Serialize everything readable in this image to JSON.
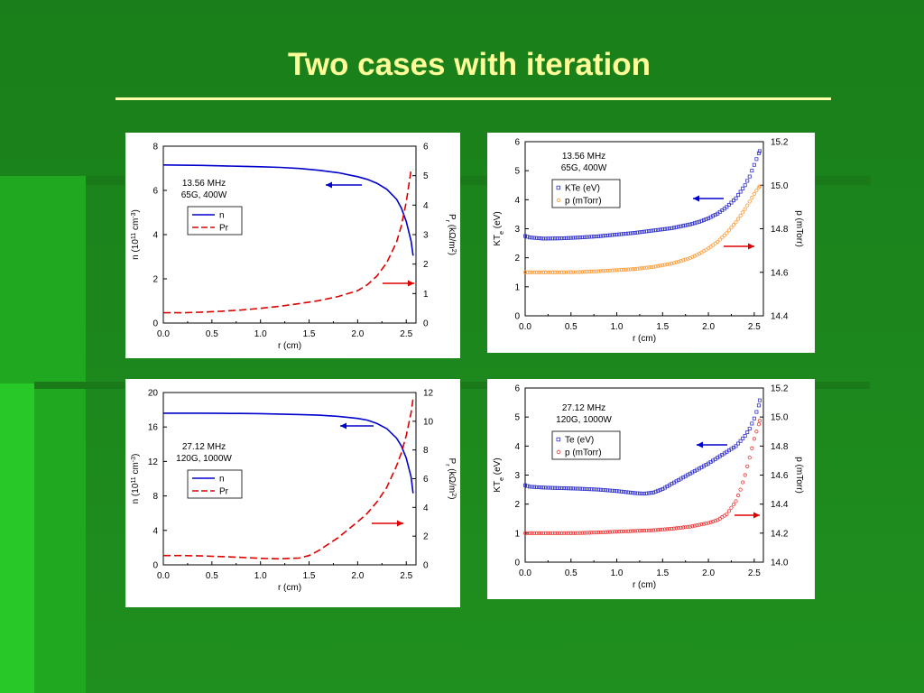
{
  "slide": {
    "title": "Two cases with iteration"
  },
  "chart_data": [
    {
      "type": "line",
      "annotation": [
        "13.56 MHz",
        "65G, 400W"
      ],
      "xlabel": "r (cm)",
      "ylabel": "n (10^11 cm^-3)",
      "y2label": "Pr (kΩ/m²)",
      "xlim": [
        0,
        2.6
      ],
      "ylim": [
        0,
        8
      ],
      "y2lim": [
        0,
        6
      ],
      "xticks": [
        "0.0",
        "0.5",
        "1.0",
        "1.5",
        "2.0",
        "2.5"
      ],
      "yticks": [
        "0",
        "2",
        "4",
        "6",
        "8"
      ],
      "y2ticks": [
        "0",
        "1",
        "2",
        "3",
        "4",
        "5",
        "6"
      ],
      "legend": "upper-left",
      "series": [
        {
          "name": "n",
          "axis": "left",
          "style": "solid",
          "color": "#0000cc",
          "x": [
            0,
            0.2,
            0.4,
            0.6,
            0.8,
            1.0,
            1.2,
            1.4,
            1.6,
            1.8,
            2.0,
            2.1,
            2.2,
            2.3,
            2.4,
            2.45,
            2.5,
            2.55,
            2.57
          ],
          "y": [
            7.15,
            7.14,
            7.13,
            7.11,
            7.09,
            7.07,
            7.04,
            6.99,
            6.91,
            6.8,
            6.62,
            6.5,
            6.32,
            6.05,
            5.6,
            5.2,
            4.6,
            3.7,
            3.05
          ]
        },
        {
          "name": "Pr",
          "axis": "right",
          "style": "dashed",
          "color": "#dd0000",
          "x": [
            0,
            0.2,
            0.4,
            0.6,
            0.8,
            1.0,
            1.2,
            1.4,
            1.6,
            1.8,
            2.0,
            2.1,
            2.2,
            2.3,
            2.4,
            2.45,
            2.5,
            2.55,
            2.57
          ],
          "y": [
            0.35,
            0.35,
            0.37,
            0.4,
            0.44,
            0.5,
            0.57,
            0.66,
            0.76,
            0.9,
            1.1,
            1.3,
            1.6,
            2.05,
            2.75,
            3.3,
            4.1,
            5.2,
            5.2
          ]
        }
      ]
    },
    {
      "type": "scatter",
      "annotation": [
        "13.56 MHz",
        "65G, 400W"
      ],
      "xlabel": "r (cm)",
      "ylabel": "KTe (eV)",
      "y2label": "p (mTorr)",
      "xlim": [
        0,
        2.6
      ],
      "ylim": [
        0,
        6
      ],
      "y2lim": [
        14.4,
        15.2
      ],
      "xticks": [
        "0.0",
        "0.5",
        "1.0",
        "1.5",
        "2.0",
        "2.5"
      ],
      "yticks": [
        "0",
        "1",
        "2",
        "3",
        "4",
        "5",
        "6"
      ],
      "y2ticks": [
        "14.4",
        "14.6",
        "14.8",
        "15.0",
        "15.2"
      ],
      "legend": "upper-left",
      "series": [
        {
          "name": "KTe (eV)",
          "axis": "left",
          "marker": "square",
          "color": "#3333cc",
          "x": [
            0,
            0.05,
            0.2,
            0.4,
            0.6,
            0.8,
            1.0,
            1.2,
            1.4,
            1.6,
            1.8,
            1.9,
            2.0,
            2.1,
            2.2,
            2.3,
            2.4,
            2.45,
            2.5,
            2.55,
            2.57
          ],
          "y": [
            2.75,
            2.7,
            2.66,
            2.67,
            2.7,
            2.74,
            2.8,
            2.86,
            2.94,
            3.02,
            3.15,
            3.24,
            3.36,
            3.52,
            3.75,
            4.05,
            4.5,
            4.8,
            5.2,
            5.6,
            5.75
          ]
        },
        {
          "name": "p (mTorr)",
          "axis": "right",
          "marker": "circle",
          "color": "#ff9933",
          "x": [
            0,
            0.2,
            0.4,
            0.6,
            0.8,
            1.0,
            1.2,
            1.4,
            1.6,
            1.8,
            1.9,
            2.0,
            2.1,
            2.2,
            2.3,
            2.4,
            2.45,
            2.5,
            2.55,
            2.57
          ],
          "y": [
            14.6,
            14.6,
            14.6,
            14.601,
            14.605,
            14.61,
            14.615,
            14.625,
            14.64,
            14.665,
            14.685,
            14.71,
            14.74,
            14.78,
            14.83,
            14.89,
            14.925,
            14.96,
            14.99,
            15.0
          ]
        }
      ]
    },
    {
      "type": "line",
      "annotation": [
        "27.12 MHz",
        "120G, 1000W"
      ],
      "xlabel": "r (cm)",
      "ylabel": "n (10^11 cm^-3)",
      "y2label": "Pr (kΩ/m²)",
      "xlim": [
        0,
        2.6
      ],
      "ylim": [
        0,
        20
      ],
      "y2lim": [
        0,
        12
      ],
      "xticks": [
        "0.0",
        "0.5",
        "1.0",
        "1.5",
        "2.0",
        "2.5"
      ],
      "yticks": [
        "0",
        "4",
        "8",
        "12",
        "16",
        "20"
      ],
      "y2ticks": [
        "0",
        "2",
        "4",
        "6",
        "8",
        "10",
        "12"
      ],
      "legend": "upper-left",
      "series": [
        {
          "name": "n",
          "axis": "left",
          "style": "solid",
          "color": "#0000cc",
          "x": [
            0,
            0.2,
            0.4,
            0.6,
            0.8,
            1.0,
            1.2,
            1.4,
            1.6,
            1.8,
            2.0,
            2.1,
            2.2,
            2.3,
            2.4,
            2.45,
            2.5,
            2.55,
            2.57
          ],
          "y": [
            17.6,
            17.6,
            17.6,
            17.58,
            17.57,
            17.55,
            17.5,
            17.45,
            17.37,
            17.24,
            17.0,
            16.8,
            16.4,
            15.8,
            14.7,
            13.8,
            12.4,
            10.2,
            8.3
          ]
        },
        {
          "name": "Pr",
          "axis": "right",
          "style": "dashed",
          "color": "#dd0000",
          "x": [
            0,
            0.2,
            0.4,
            0.6,
            0.8,
            1.0,
            1.2,
            1.4,
            1.5,
            1.6,
            1.8,
            2.0,
            2.1,
            2.2,
            2.3,
            2.4,
            2.45,
            2.5,
            2.55,
            2.57
          ],
          "y": [
            0.65,
            0.65,
            0.62,
            0.58,
            0.52,
            0.45,
            0.42,
            0.48,
            0.65,
            1.0,
            1.9,
            3.0,
            3.6,
            4.4,
            5.4,
            6.9,
            7.8,
            9.0,
            10.6,
            11.6
          ]
        }
      ]
    },
    {
      "type": "scatter",
      "annotation": [
        "27.12 MHz",
        "120G, 1000W"
      ],
      "xlabel": "r (cm)",
      "ylabel": "KTe (eV)",
      "y2label": "p (mTorr)",
      "xlim": [
        0,
        2.6
      ],
      "ylim": [
        0,
        6
      ],
      "y2lim": [
        14.0,
        15.2
      ],
      "xticks": [
        "0.0",
        "0.5",
        "1.0",
        "1.5",
        "2.0",
        "2.5"
      ],
      "yticks": [
        "0",
        "1",
        "2",
        "3",
        "4",
        "5",
        "6"
      ],
      "y2ticks": [
        "14.0",
        "14.2",
        "14.4",
        "14.6",
        "14.8",
        "15.0",
        "15.2"
      ],
      "legend": "upper-left",
      "series": [
        {
          "name": "Te (eV)",
          "axis": "left",
          "marker": "square",
          "color": "#3333cc",
          "x": [
            0,
            0.05,
            0.2,
            0.4,
            0.6,
            0.8,
            1.0,
            1.2,
            1.3,
            1.4,
            1.5,
            1.6,
            1.8,
            2.0,
            2.2,
            2.3,
            2.4,
            2.45,
            2.5,
            2.55,
            2.57
          ],
          "y": [
            2.65,
            2.6,
            2.57,
            2.55,
            2.53,
            2.5,
            2.45,
            2.38,
            2.36,
            2.4,
            2.52,
            2.7,
            3.05,
            3.4,
            3.8,
            4.0,
            4.35,
            4.6,
            4.95,
            5.4,
            5.75
          ]
        },
        {
          "name": "p (mTorr)",
          "axis": "right",
          "marker": "circle",
          "color": "#ee3333",
          "x": [
            0,
            0.2,
            0.4,
            0.6,
            0.8,
            1.0,
            1.2,
            1.4,
            1.6,
            1.8,
            2.0,
            2.1,
            2.2,
            2.3,
            2.35,
            2.4,
            2.45,
            2.5,
            2.55,
            2.57
          ],
          "y": [
            14.2,
            14.2,
            14.2,
            14.201,
            14.205,
            14.21,
            14.215,
            14.22,
            14.23,
            14.245,
            14.27,
            14.29,
            14.33,
            14.42,
            14.5,
            14.6,
            14.72,
            14.85,
            14.95,
            15.0
          ]
        }
      ]
    }
  ]
}
